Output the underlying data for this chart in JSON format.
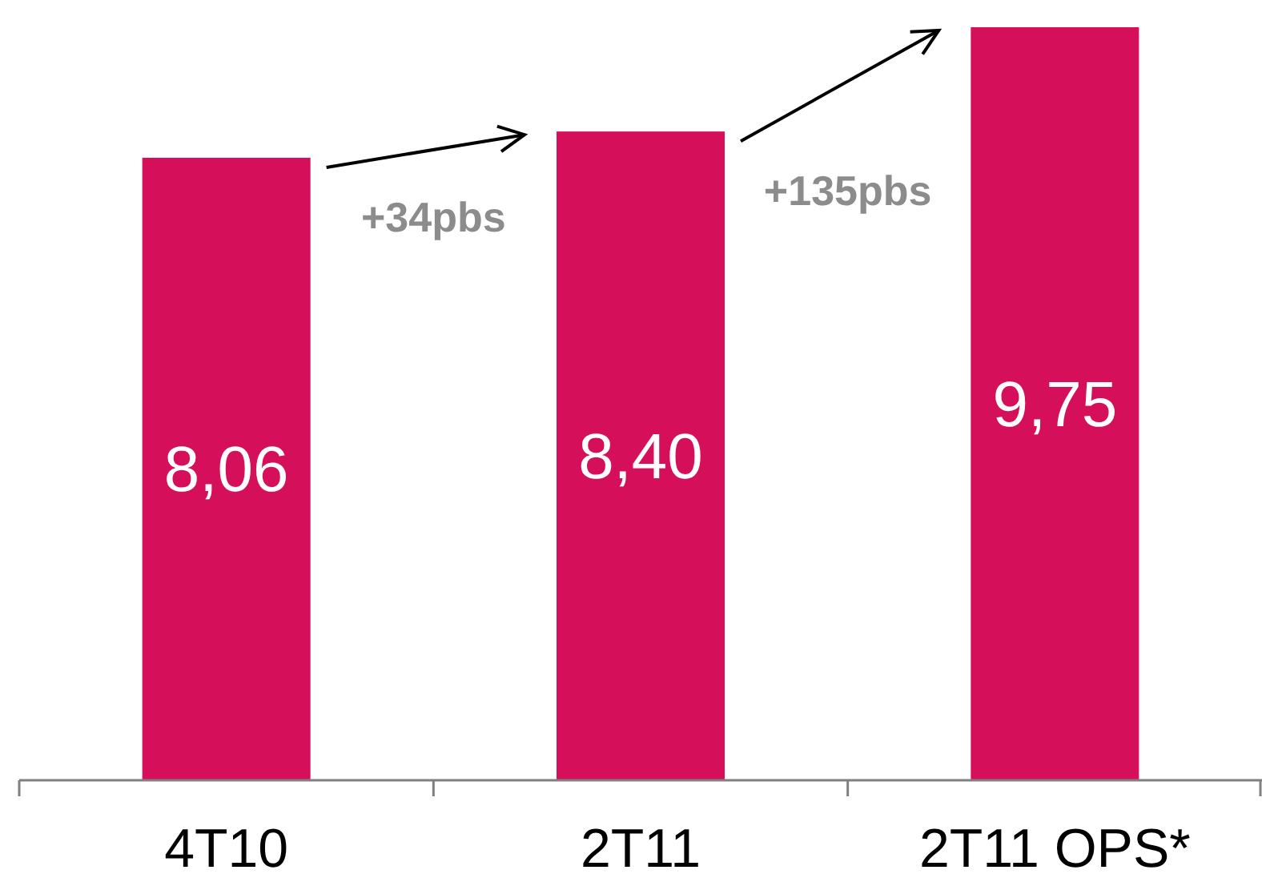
{
  "chart_data": {
    "type": "bar",
    "categories": [
      "4T10",
      "2T11",
      "2T11 OPS*"
    ],
    "values": [
      8.06,
      8.4,
      9.75
    ],
    "color": "#d60f5a",
    "value_labels": [
      "8,06",
      "8,40",
      "9,75"
    ],
    "annotations": [
      "+34pbs",
      "+135pbs"
    ]
  }
}
